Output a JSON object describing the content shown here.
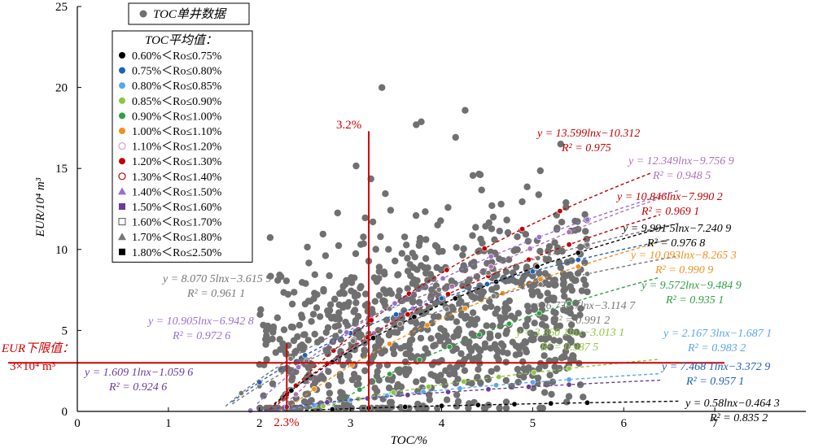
{
  "chart_data": {
    "type": "scatter",
    "xlabel": "TOC/%",
    "ylabel": "EUR/10⁴ m³",
    "xlim": [
      0,
      8
    ],
    "ylim": [
      0,
      25
    ],
    "x_ticks": [
      "0",
      "1",
      "2",
      "3",
      "4",
      "5",
      "6",
      "7"
    ],
    "y_ticks": [
      "0",
      "5",
      "10",
      "15",
      "20",
      "25"
    ],
    "grid": false,
    "legend_placement": "top-left",
    "single_well_legend": "TOC单井数据",
    "avg_legend_title": "TOC平均值：",
    "avg_legend": [
      {
        "label": "0.60%＜Ro≤0.75%",
        "color": "#000000",
        "marker": "circle"
      },
      {
        "label": "0.75%＜Ro≤0.80%",
        "color": "#1f5fb4",
        "marker": "circle"
      },
      {
        "label": "0.80%＜Ro≤0.85%",
        "color": "#5aa7e6",
        "marker": "circle"
      },
      {
        "label": "0.85%＜Ro≤0.90%",
        "color": "#8cc63f",
        "marker": "circle"
      },
      {
        "label": "0.90%＜Ro≤1.00%",
        "color": "#2ea043",
        "marker": "circle"
      },
      {
        "label": "1.00%＜Ro≤1.10%",
        "color": "#f0901e",
        "marker": "circle"
      },
      {
        "label": "1.10%＜Ro≤1.20%",
        "color": "#d9a0c8",
        "marker": "circle-open"
      },
      {
        "label": "1.20%＜Ro≤1.30%",
        "color": "#c00000",
        "marker": "circle"
      },
      {
        "label": "1.30%＜Ro≤1.40%",
        "color": "#c00000",
        "marker": "circle-open"
      },
      {
        "label": "1.40%＜Ro≤1.50%",
        "color": "#9a6fd0",
        "marker": "triangle"
      },
      {
        "label": "1.50%＜Ro≤1.60%",
        "color": "#6a3d9a",
        "marker": "square"
      },
      {
        "label": "1.60%＜Ro≤1.70%",
        "color": "#555555",
        "marker": "square-open"
      },
      {
        "label": "1.70%＜Ro≤1.80%",
        "color": "#777777",
        "marker": "triangle"
      },
      {
        "label": "1.80%＜Ro≤2.50%",
        "color": "#000000",
        "marker": "square"
      }
    ],
    "fits": [
      {
        "eq": "y = 13.599lnx−10.312",
        "r2": "R² = 0.975",
        "a": 13.599,
        "b": -10.312,
        "color": "#c00000",
        "x": [
          2.1,
          6.3
        ]
      },
      {
        "eq": "y = 12.349lnx−9.756 9",
        "r2": "R² = 0.948 5",
        "a": 12.349,
        "b": -9.7569,
        "color": "#b070b8",
        "x": [
          2.1,
          6.4
        ]
      },
      {
        "eq": "y = 10.846lnx−7.990 2",
        "r2": "R² = 0.969 1",
        "a": 10.846,
        "b": -7.9902,
        "color": "#c00000",
        "x": [
          2.0,
          6.4
        ]
      },
      {
        "eq": "y = 9.991 5lnx−7.240 9",
        "r2": "R² = 0.976 8",
        "a": 9.9915,
        "b": -7.2409,
        "color": "#000000",
        "x": [
          2.05,
          6.5
        ]
      },
      {
        "eq": "y = 10.093lnx−8.265 3",
        "r2": "R² = 0.990 9",
        "a": 10.093,
        "b": -8.2653,
        "color": "#f0901e",
        "x": [
          2.3,
          6.5
        ]
      },
      {
        "eq": "y = 9.572lnx−9.484 9",
        "r2": "R² = 0.935 1",
        "a": 9.572,
        "b": -9.4849,
        "color": "#2ea043",
        "x": [
          2.8,
          6.4
        ]
      },
      {
        "eq": "y = 6.734 7lnx−3.114 7",
        "r2": "R² = 0.991 2",
        "a": 6.7347,
        "b": -3.1147,
        "color": "#777777",
        "x": [
          1.7,
          6.6
        ]
      },
      {
        "eq": "y = 3.360 1lnx−3.013 1",
        "r2": "R² = 0.987 5",
        "a": 3.3601,
        "b": -3.0131,
        "color": "#8cc63f",
        "x": [
          2.4,
          6.4
        ]
      },
      {
        "eq": "y = 2.167 3lnx−1.687 1",
        "r2": "R² = 0.983 2",
        "a": 2.1673,
        "b": -1.6871,
        "color": "#5aa7e6",
        "x": [
          2.3,
          6.4
        ]
      },
      {
        "eq": "y = 7.468 1lnx−3.372 9",
        "r2": "R² = 0.957 1",
        "a": 7.4681,
        "b": -3.3729,
        "color": "#1f5fb4",
        "x": [
          1.7,
          6.5
        ]
      },
      {
        "eq": "y = 0.58lnx−0.464 3",
        "r2": "R² = 0.835 2",
        "a": 0.58,
        "b": -0.4643,
        "color": "#000000",
        "x": [
          2.5,
          6.6
        ]
      },
      {
        "eq": "y = 8.070 5lnx−3.615 9",
        "r2": "R² = 0.961 1",
        "a": 8.0705,
        "b": -3.6159,
        "color": "#777777",
        "x": [
          1.5,
          6.6
        ]
      },
      {
        "eq": "y = 10.905lnx−6.942 8",
        "r2": "R² = 0.972 6",
        "a": 10.905,
        "b": -6.9428,
        "color": "#9a6fd0",
        "x": [
          1.6,
          6.6
        ]
      },
      {
        "eq": "y = 1.609 1lnx−1.059 6",
        "r2": "R² = 0.924 6",
        "a": 1.6091,
        "b": -1.0596,
        "color": "#6a3d9a",
        "x": [
          2.0,
          6.4
        ]
      }
    ],
    "thresholds": {
      "eur_lower_limit": 3,
      "eur_label_1": "EUR下限值：",
      "eur_label_2": "3×10⁴ m³",
      "toc_low": 2.3,
      "toc_low_label": "2.3%",
      "toc_high": 3.2,
      "toc_high_label": "3.2%"
    }
  }
}
